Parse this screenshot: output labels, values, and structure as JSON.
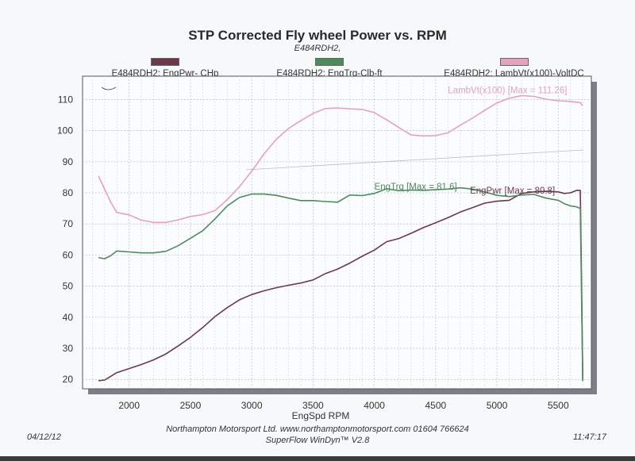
{
  "page": {
    "title": "STP Corrected Fly wheel Power vs. RPM",
    "subtitle": "E484RDH2,",
    "footer_company": "Northampton Motorsport Ltd. www.northamptonmotorsport.com 01604 766624",
    "footer_software": "SuperFlow WinDyn™ V2.8",
    "date": "04/12/12",
    "time": "11:47:17"
  },
  "legend": [
    {
      "label": "E484RDH2: EngPwr- CHp",
      "color": "#6b3a4a"
    },
    {
      "label": "E484RDH2: EngTrq-Clb-ft",
      "color": "#4f8a5e"
    },
    {
      "label": "E484RDH2: LambVt(x100)-VoltDC",
      "color": "#e3a3bd"
    }
  ],
  "chart_data": {
    "type": "line",
    "title": "STP Corrected Fly wheel Power vs. RPM",
    "xlabel": "EngSpd  RPM",
    "ylabel": "",
    "xlim": [
      1620,
      5770
    ],
    "ylim": [
      17,
      117.5
    ],
    "xticks": [
      2000,
      2500,
      3000,
      3500,
      4000,
      4500,
      5000,
      5500
    ],
    "yticks": [
      20,
      30,
      40,
      50,
      60,
      70,
      80,
      90,
      100,
      110
    ],
    "grid": true,
    "annotations": [
      {
        "series": "LambVt",
        "text": "LambVt(x100) [Max = 111.26]",
        "x": 4600,
        "y": 113,
        "color": "#e3a3bd"
      },
      {
        "series": "EngTrq",
        "text": "EngTrq [Max = 81.6]",
        "x": 4000,
        "y": 82,
        "color": "#4f8a5e"
      },
      {
        "series": "EngPwr",
        "text": "EngPwr [Max = 80.8]",
        "x": 4780,
        "y": 80.8,
        "color": "#6b3a4a"
      }
    ],
    "series": [
      {
        "name": "EngPwr",
        "color": "#6b3a4a",
        "x": [
          1750,
          1800,
          1850,
          1900,
          2000,
          2100,
          2200,
          2300,
          2400,
          2500,
          2600,
          2700,
          2800,
          2900,
          3000,
          3100,
          3200,
          3300,
          3400,
          3500,
          3600,
          3700,
          3800,
          3900,
          4000,
          4100,
          4200,
          4300,
          4400,
          4500,
          4600,
          4700,
          4800,
          4900,
          5000,
          5100,
          5200,
          5300,
          5400,
          5500,
          5550,
          5600,
          5650,
          5680,
          5700
        ],
        "y": [
          19.6,
          19.8,
          21.0,
          22.2,
          23.5,
          24.8,
          26.3,
          28.2,
          30.8,
          33.5,
          36.7,
          40.2,
          43.1,
          45.6,
          47.3,
          48.5,
          49.5,
          50.3,
          51.0,
          52.0,
          54.0,
          55.5,
          57.4,
          59.6,
          61.6,
          64.3,
          65.3,
          67.0,
          68.8,
          70.4,
          72.0,
          73.8,
          75.2,
          76.7,
          77.3,
          77.6,
          79.8,
          80.3,
          80.5,
          80.3,
          79.8,
          80.0,
          80.8,
          80.8,
          20.0
        ]
      },
      {
        "name": "EngTrq",
        "color": "#4f8a5e",
        "x": [
          1750,
          1800,
          1850,
          1900,
          2000,
          2100,
          2200,
          2300,
          2400,
          2500,
          2600,
          2700,
          2800,
          2900,
          3000,
          3100,
          3200,
          3300,
          3400,
          3500,
          3600,
          3700,
          3800,
          3900,
          4000,
          4100,
          4200,
          4300,
          4400,
          4500,
          4600,
          4700,
          4800,
          4900,
          5000,
          5100,
          5200,
          5300,
          5400,
          5500,
          5550,
          5600,
          5650,
          5680,
          5700
        ],
        "y": [
          59.2,
          58.8,
          59.8,
          61.3,
          61.0,
          60.7,
          60.7,
          61.2,
          63.0,
          65.4,
          67.8,
          71.6,
          75.8,
          78.5,
          79.6,
          79.6,
          79.2,
          78.3,
          77.5,
          77.5,
          77.2,
          77.0,
          79.3,
          79.1,
          79.8,
          81.3,
          80.7,
          80.9,
          80.8,
          81.0,
          81.2,
          81.6,
          81.2,
          80.3,
          79.2,
          78.8,
          79.3,
          79.5,
          78.3,
          77.6,
          76.5,
          75.8,
          75.5,
          75.0,
          19.5
        ]
      },
      {
        "name": "LambVt",
        "color": "#e3a3bd",
        "x": [
          1750,
          1800,
          1850,
          1900,
          2000,
          2100,
          2200,
          2300,
          2400,
          2500,
          2600,
          2700,
          2800,
          2900,
          3000,
          3100,
          3200,
          3300,
          3400,
          3500,
          3600,
          3700,
          3800,
          3900,
          4000,
          4100,
          4200,
          4300,
          4400,
          4500,
          4600,
          4700,
          4800,
          4900,
          5000,
          5100,
          5200,
          5300,
          5400,
          5500,
          5600,
          5680,
          5700
        ],
        "y": [
          85.4,
          81.2,
          77.0,
          73.7,
          72.9,
          71.2,
          70.5,
          70.5,
          71.3,
          72.4,
          73.0,
          74.3,
          77.8,
          82.0,
          87.0,
          92.5,
          97.2,
          100.7,
          103.2,
          105.5,
          107.1,
          107.3,
          107.0,
          106.8,
          105.8,
          103.5,
          101.0,
          98.6,
          98.3,
          98.4,
          99.3,
          101.7,
          104.0,
          106.5,
          108.9,
          110.4,
          111.26,
          111.0,
          110.1,
          109.6,
          109.4,
          109.0,
          108.0
        ]
      }
    ]
  }
}
